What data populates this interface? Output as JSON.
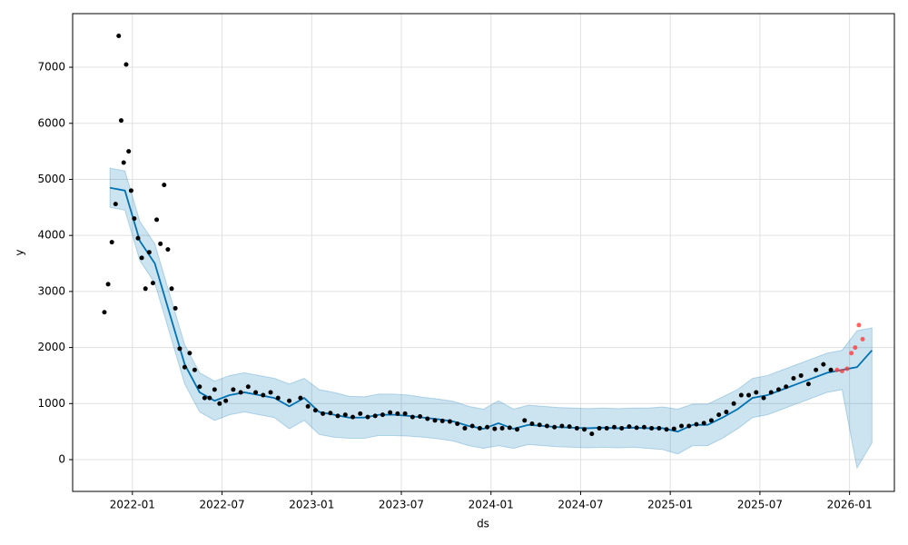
{
  "chart_data": {
    "type": "forecast",
    "x_label": "ds",
    "y_label": "y",
    "xlim": [
      "2021-09",
      "2026-04"
    ],
    "xticks": [
      "2022-01",
      "2022-07",
      "2023-01",
      "2023-07",
      "2024-01",
      "2024-07",
      "2025-01",
      "2025-07",
      "2026-01"
    ],
    "ylim": [
      -567,
      7957
    ],
    "yticks": [
      0,
      1000,
      2000,
      3000,
      4000,
      5000,
      6000,
      7000
    ],
    "grid": true,
    "forecast": {
      "color": "#0072b2",
      "x": [
        "2021-11",
        "2021-12",
        "2022-01",
        "2022-02",
        "2022-03",
        "2022-04",
        "2022-05",
        "2022-06",
        "2022-07",
        "2022-08",
        "2022-09",
        "2022-10",
        "2022-11",
        "2022-12",
        "2023-01",
        "2023-02",
        "2023-03",
        "2023-04",
        "2023-05",
        "2023-06",
        "2023-07",
        "2023-08",
        "2023-09",
        "2023-10",
        "2023-11",
        "2023-12",
        "2024-01",
        "2024-02",
        "2024-03",
        "2024-04",
        "2024-05",
        "2024-06",
        "2024-07",
        "2024-08",
        "2024-09",
        "2024-10",
        "2024-11",
        "2024-12",
        "2025-01",
        "2025-02",
        "2025-03",
        "2025-04",
        "2025-05",
        "2025-06",
        "2025-07",
        "2025-08",
        "2025-09",
        "2025-10",
        "2025-11",
        "2025-12",
        "2026-01",
        "2026-02"
      ],
      "values": [
        4850,
        4800,
        3900,
        3500,
        2600,
        1700,
        1200,
        1050,
        1150,
        1200,
        1150,
        1100,
        950,
        1100,
        850,
        800,
        750,
        750,
        800,
        800,
        780,
        750,
        720,
        680,
        600,
        550,
        650,
        550,
        620,
        600,
        580,
        570,
        560,
        570,
        560,
        570,
        560,
        560,
        500,
        620,
        620,
        750,
        900,
        1100,
        1150,
        1250,
        1350,
        1450,
        1550,
        1600,
        1650,
        1950
      ],
      "lower": [
        4500,
        4450,
        3550,
        3150,
        2250,
        1350,
        850,
        700,
        800,
        850,
        800,
        750,
        550,
        700,
        450,
        400,
        380,
        380,
        430,
        430,
        420,
        400,
        370,
        330,
        250,
        200,
        250,
        200,
        270,
        250,
        230,
        220,
        210,
        220,
        210,
        220,
        200,
        180,
        100,
        250,
        250,
        380,
        550,
        750,
        800,
        900,
        1000,
        1100,
        1200,
        1250,
        -150,
        300
      ],
      "upper": [
        5200,
        5150,
        4250,
        3850,
        2950,
        2050,
        1550,
        1400,
        1500,
        1550,
        1500,
        1450,
        1350,
        1450,
        1250,
        1200,
        1130,
        1120,
        1170,
        1170,
        1150,
        1110,
        1080,
        1040,
        950,
        900,
        1050,
        900,
        970,
        950,
        930,
        920,
        910,
        920,
        910,
        920,
        920,
        940,
        900,
        990,
        990,
        1120,
        1250,
        1450,
        1500,
        1600,
        1700,
        1800,
        1900,
        1950,
        2300,
        2350
      ]
    },
    "observed": {
      "color": "#000000",
      "x": [
        "2021-11",
        "2021-11",
        "2021-11",
        "2021-11",
        "2021-12",
        "2021-12",
        "2021-12",
        "2021-12",
        "2021-12",
        "2021-12",
        "2022-01",
        "2022-01",
        "2022-01",
        "2022-01",
        "2022-02",
        "2022-02",
        "2022-02",
        "2022-02",
        "2022-03",
        "2022-03",
        "2022-03",
        "2022-03",
        "2022-04",
        "2022-04",
        "2022-04",
        "2022-05",
        "2022-05",
        "2022-05",
        "2022-06",
        "2022-06",
        "2022-06",
        "2022-07",
        "2022-07",
        "2022-08",
        "2022-08",
        "2022-09",
        "2022-09",
        "2022-10",
        "2022-10",
        "2022-11",
        "2022-12",
        "2022-12",
        "2023-01",
        "2023-01",
        "2023-02",
        "2023-02",
        "2023-03",
        "2023-03",
        "2023-04",
        "2023-04",
        "2023-05",
        "2023-05",
        "2023-06",
        "2023-06",
        "2023-07",
        "2023-07",
        "2023-08",
        "2023-08",
        "2023-09",
        "2023-09",
        "2023-10",
        "2023-10",
        "2023-11",
        "2023-11",
        "2023-12",
        "2023-12",
        "2024-01",
        "2024-01",
        "2024-02",
        "2024-02",
        "2024-03",
        "2024-03",
        "2024-04",
        "2024-04",
        "2024-05",
        "2024-05",
        "2024-06",
        "2024-06",
        "2024-07",
        "2024-07",
        "2024-08",
        "2024-08",
        "2024-09",
        "2024-09",
        "2024-10",
        "2024-10",
        "2024-11",
        "2024-11",
        "2024-12",
        "2024-12",
        "2025-01",
        "2025-01",
        "2025-02",
        "2025-02",
        "2025-03",
        "2025-03",
        "2025-04",
        "2025-04",
        "2025-05",
        "2025-05",
        "2025-06",
        "2025-06",
        "2025-07",
        "2025-07",
        "2025-08",
        "2025-08",
        "2025-09",
        "2025-09",
        "2025-10",
        "2025-10",
        "2025-11",
        "2025-11"
      ],
      "values": [
        2630,
        3130,
        3880,
        4560,
        7560,
        6050,
        5300,
        7050,
        5500,
        4800,
        4300,
        3950,
        3600,
        3050,
        3700,
        3150,
        4280,
        3850,
        4900,
        3750,
        3050,
        2700,
        1980,
        1650,
        1900,
        1600,
        1300,
        1100,
        1100,
        1250,
        1000,
        1050,
        1250,
        1200,
        1300,
        1200,
        1150,
        1200,
        1100,
        1050,
        1100,
        950,
        880,
        820,
        830,
        780,
        800,
        760,
        820,
        760,
        780,
        800,
        840,
        820,
        820,
        760,
        770,
        730,
        700,
        690,
        680,
        640,
        560,
        600,
        560,
        580,
        550,
        560,
        570,
        540,
        700,
        640,
        620,
        600,
        580,
        600,
        590,
        560,
        540,
        460,
        560,
        560,
        580,
        560,
        590,
        570,
        580,
        560,
        560,
        540,
        550,
        600,
        600,
        630,
        650,
        700,
        800,
        850,
        1000,
        1150,
        1150,
        1200,
        1100,
        1200,
        1250,
        1300,
        1450,
        1500,
        1350,
        1600,
        1700,
        1600
      ]
    },
    "recent": {
      "color": "#ff3b3b",
      "x": [
        "2025-12",
        "2025-12",
        "2025-12",
        "2026-01",
        "2026-01",
        "2026-01",
        "2026-01"
      ],
      "values": [
        1600,
        1580,
        1620,
        1900,
        2000,
        2400,
        2150
      ]
    }
  }
}
